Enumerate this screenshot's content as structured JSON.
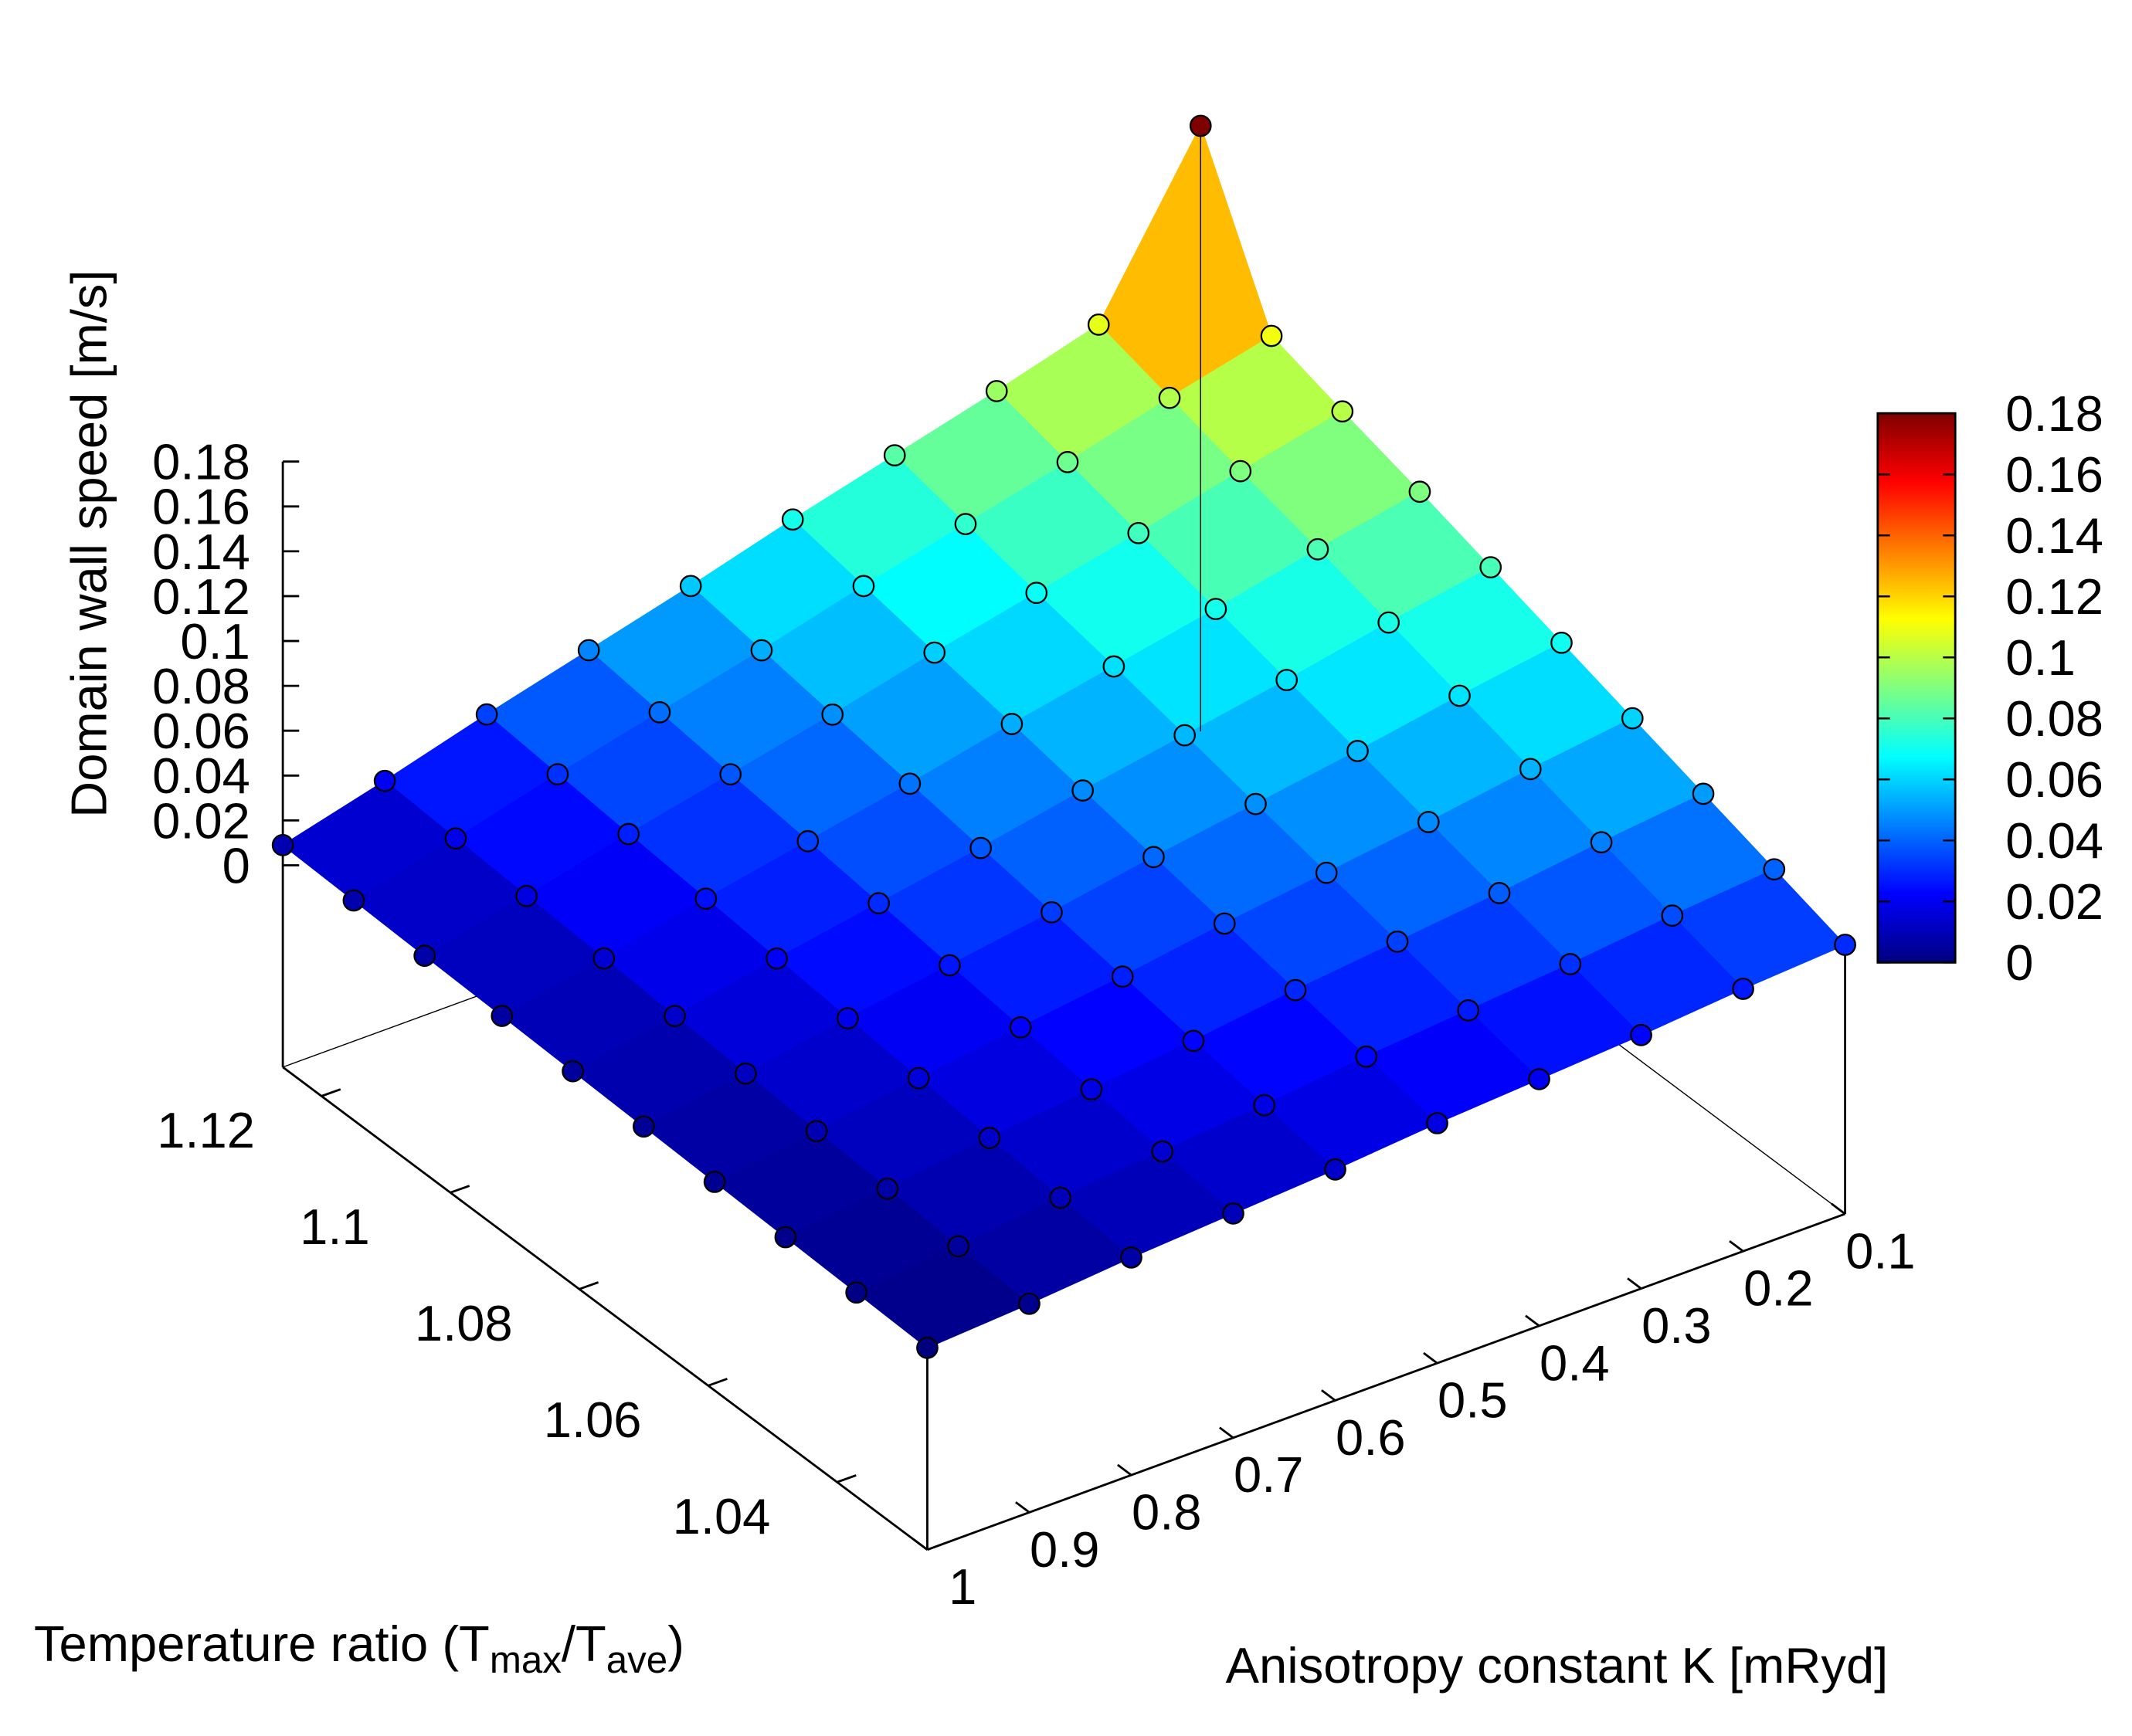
{
  "chart_data": {
    "type": "surface3d",
    "zlabel": "Domain wall speed [m/s]",
    "ylabel_parts": [
      "Temperature ratio (T",
      "max",
      "/T",
      "ave",
      ")"
    ],
    "xlabel": "Anisotropy constant K [mRyd]",
    "x": [
      0.1,
      0.2,
      0.3,
      0.4,
      0.5,
      0.6,
      0.7,
      0.8,
      0.9,
      1.0
    ],
    "y": [
      1.026,
      1.037,
      1.048,
      1.059,
      1.07,
      1.081,
      1.092,
      1.104,
      1.115,
      1.126
    ],
    "z": [
      [
        0.03,
        0.027,
        0.023,
        0.02,
        0.017,
        0.013,
        0.01,
        0.007,
        0.003,
        0.0
      ],
      [
        0.04,
        0.036,
        0.031,
        0.027,
        0.023,
        0.018,
        0.014,
        0.01,
        0.005,
        0.001
      ],
      [
        0.05,
        0.045,
        0.039,
        0.034,
        0.029,
        0.023,
        0.018,
        0.013,
        0.007,
        0.002
      ],
      [
        0.06,
        0.054,
        0.047,
        0.041,
        0.035,
        0.028,
        0.022,
        0.016,
        0.009,
        0.003
      ],
      [
        0.07,
        0.063,
        0.055,
        0.048,
        0.041,
        0.033,
        0.026,
        0.019,
        0.011,
        0.004
      ],
      [
        0.08,
        0.072,
        0.063,
        0.055,
        0.047,
        0.038,
        0.03,
        0.022,
        0.013,
        0.005
      ],
      [
        0.09,
        0.081,
        0.071,
        0.062,
        0.053,
        0.043,
        0.034,
        0.025,
        0.015,
        0.006
      ],
      [
        0.1,
        0.09,
        0.079,
        0.069,
        0.059,
        0.048,
        0.038,
        0.028,
        0.017,
        0.007
      ],
      [
        0.11,
        0.099,
        0.087,
        0.076,
        0.065,
        0.053,
        0.042,
        0.031,
        0.019,
        0.008
      ],
      [
        0.18,
        0.108,
        0.095,
        0.083,
        0.071,
        0.058,
        0.046,
        0.034,
        0.021,
        0.009
      ]
    ],
    "xlim": [
      0.1,
      1
    ],
    "xticks": [
      0.1,
      0.2,
      0.3,
      0.4,
      0.5,
      0.6,
      0.7,
      0.8,
      0.9,
      1
    ],
    "ylim": [
      1.026,
      1.126
    ],
    "yticks": [
      1.04,
      1.06,
      1.08,
      1.1,
      1.12
    ],
    "zlim": [
      0,
      0.18
    ],
    "zticks": [
      0,
      0.02,
      0.04,
      0.06,
      0.08,
      0.1,
      0.12,
      0.14,
      0.16,
      0.18
    ],
    "cbticks": [
      0,
      0.02,
      0.04,
      0.06,
      0.08,
      0.1,
      0.12,
      0.14,
      0.16,
      0.18
    ],
    "palette": [
      "#00007f",
      "#0000ff",
      "#007fff",
      "#00ffff",
      "#7fff7f",
      "#ffff00",
      "#ff7f00",
      "#ff0000",
      "#7f0000"
    ],
    "point_color": "#000000"
  }
}
